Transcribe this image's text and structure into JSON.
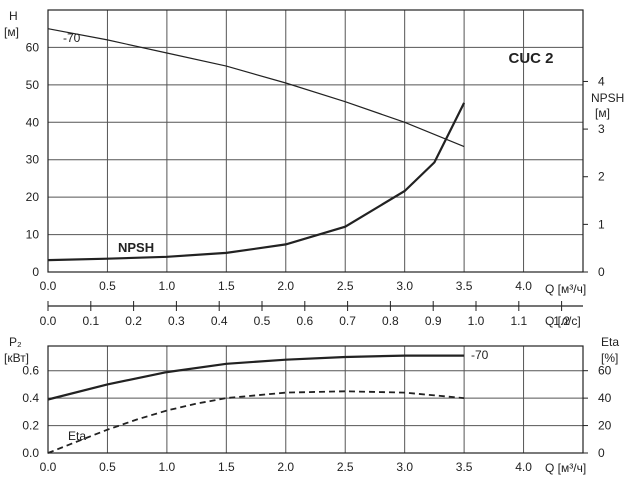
{
  "chart_data": [
    {
      "panel": "head",
      "type": "line",
      "title": "CUC 2",
      "x_label": "Q [м³/ч]",
      "x_ticks": [
        "0.0",
        "0.5",
        "1.0",
        "1.5",
        "2.0",
        "2.5",
        "3.0",
        "3.5",
        "4.0"
      ],
      "xlim": [
        0,
        4.5
      ],
      "y_left_label_top": "H",
      "y_left_label_unit": "[м]",
      "y_left_ticks": [
        "0",
        "10",
        "20",
        "30",
        "40",
        "50",
        "60"
      ],
      "y_left_lim": [
        0,
        70
      ],
      "y_right_label_top": "NPSH",
      "y_right_label_unit": "[м]",
      "y_right_ticks": [
        "0",
        "1",
        "2",
        "3",
        "4"
      ],
      "y_right_lim": [
        0,
        5.5
      ],
      "grid": true,
      "series": [
        {
          "name": "-70",
          "axis": "left",
          "style": "thin",
          "x": [
            0,
            0.5,
            1.0,
            1.5,
            2.0,
            2.5,
            3.0,
            3.5
          ],
          "y": [
            65,
            62,
            58.5,
            55,
            50.5,
            45.5,
            40,
            33.5
          ]
        },
        {
          "name": "NPSH",
          "axis": "right",
          "style": "thick",
          "x": [
            0,
            0.5,
            1.0,
            1.5,
            2.0,
            2.5,
            3.0,
            3.25,
            3.5
          ],
          "y": [
            0.25,
            0.28,
            0.32,
            0.4,
            0.58,
            0.95,
            1.7,
            2.3,
            3.55
          ]
        }
      ]
    },
    {
      "panel": "flow-ls",
      "type": "axis",
      "x_label": "Q [л/с]",
      "x_ticks": [
        "0.0",
        "0.1",
        "0.2",
        "0.3",
        "0.4",
        "0.5",
        "0.6",
        "0.7",
        "0.8",
        "0.9",
        "1.0",
        "1.1",
        "1.2"
      ],
      "xlim": [
        0,
        1.25
      ]
    },
    {
      "panel": "power",
      "type": "line",
      "x_label": "Q [м³/ч]",
      "x_ticks": [
        "0.0",
        "0.5",
        "1.0",
        "1.5",
        "2.0",
        "2.5",
        "3.0",
        "3.5",
        "4.0"
      ],
      "xlim": [
        0,
        4.5
      ],
      "y_left_label_top": "P₂",
      "y_left_label_unit": "[кВт]",
      "y_left_ticks": [
        "0.0",
        "0.2",
        "0.4",
        "0.6"
      ],
      "y_left_lim": [
        0,
        0.78
      ],
      "y_right_label_top": "Eta",
      "y_right_label_unit": "[%]",
      "y_right_ticks": [
        "0",
        "20",
        "40",
        "60"
      ],
      "y_right_lim": [
        0,
        78
      ],
      "grid": true,
      "series": [
        {
          "name": "-70",
          "axis": "left",
          "style": "thick",
          "x": [
            0,
            0.5,
            1.0,
            1.5,
            2.0,
            2.5,
            3.0,
            3.5
          ],
          "y": [
            0.39,
            0.5,
            0.59,
            0.65,
            0.68,
            0.7,
            0.71,
            0.71
          ]
        },
        {
          "name": "Eta",
          "axis": "right",
          "style": "dashed",
          "x": [
            0,
            0.25,
            0.5,
            0.75,
            1.0,
            1.25,
            1.5,
            2.0,
            2.5,
            3.0,
            3.5
          ],
          "y": [
            0,
            8.5,
            17,
            24.5,
            31,
            36,
            40,
            44,
            45,
            44,
            40
          ]
        }
      ]
    }
  ]
}
